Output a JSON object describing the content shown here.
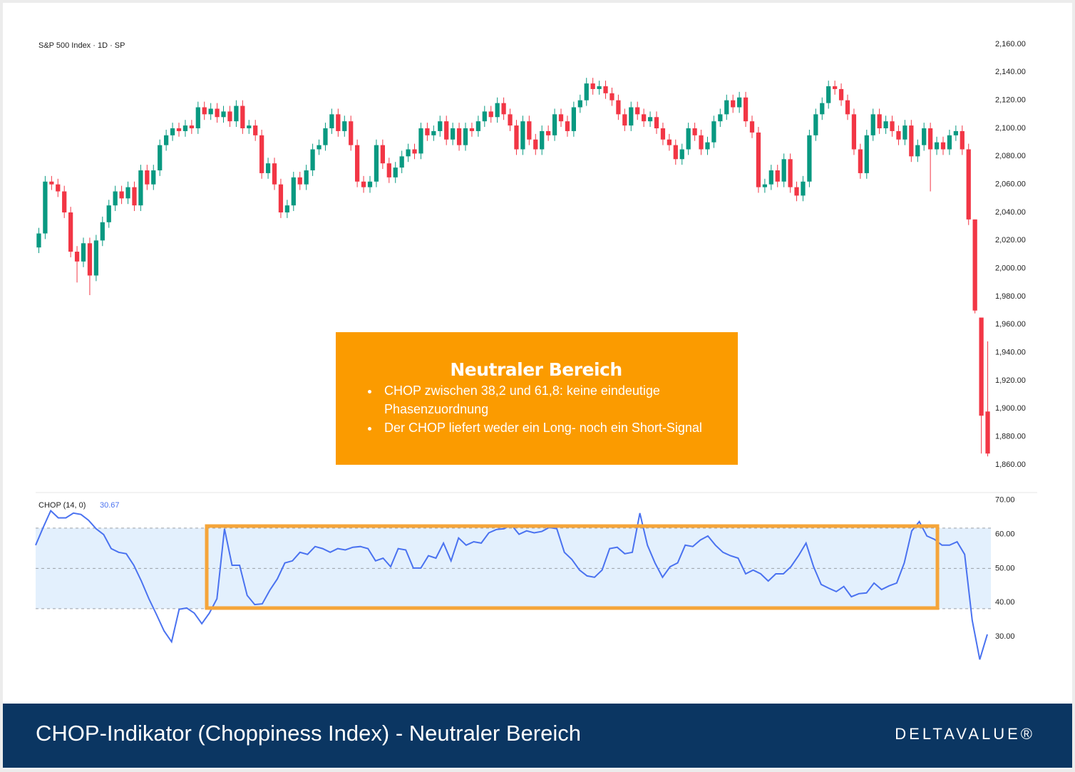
{
  "chart_data": [
    {
      "type": "candlestick",
      "title": "S&P 500 Index · 1D · SP",
      "up_color": "#089981",
      "down_color": "#f23645",
      "ylim": [
        1860,
        2160
      ],
      "yticks": [
        {
          "value": 2160,
          "label": "2,160.00"
        },
        {
          "value": 2140,
          "label": "2,140.00"
        },
        {
          "value": 2120,
          "label": "2,120.00"
        },
        {
          "value": 2100,
          "label": "2,100.00"
        },
        {
          "value": 2080,
          "label": "2,080.00"
        },
        {
          "value": 2060,
          "label": "2,060.00"
        },
        {
          "value": 2040,
          "label": "2,040.00"
        },
        {
          "value": 2020,
          "label": "2,020.00"
        },
        {
          "value": 2000,
          "label": "2,000.00"
        },
        {
          "value": 1980,
          "label": "1,980.00"
        },
        {
          "value": 1960,
          "label": "1,960.00"
        },
        {
          "value": 1940,
          "label": "1,940.00"
        },
        {
          "value": 1920,
          "label": "1,920.00"
        },
        {
          "value": 1900,
          "label": "1,900.00"
        },
        {
          "value": 1880,
          "label": "1,880.00"
        },
        {
          "value": 1860,
          "label": "1,860.00"
        }
      ],
      "open": [
        2015,
        2025,
        2062,
        2060,
        2055,
        2040,
        2012,
        2005,
        2018,
        1995,
        2020,
        2033,
        2045,
        2055,
        2050,
        2058,
        2045,
        2070,
        2060,
        2070,
        2088,
        2095,
        2100,
        2098,
        2102,
        2100,
        2115,
        2110,
        2114,
        2108,
        2112,
        2105,
        2116,
        2100,
        2102,
        2095,
        2068,
        2075,
        2060,
        2040,
        2045,
        2065,
        2060,
        2070,
        2085,
        2088,
        2100,
        2110,
        2098,
        2105,
        2088,
        2062,
        2058,
        2062,
        2088,
        2075,
        2065,
        2072,
        2080,
        2085,
        2082,
        2100,
        2095,
        2098,
        2105,
        2092,
        2100,
        2088,
        2100,
        2098,
        2105,
        2112,
        2108,
        2118,
        2110,
        2102,
        2085,
        2105,
        2092,
        2085,
        2098,
        2095,
        2110,
        2105,
        2098,
        2115,
        2120,
        2132,
        2128,
        2130,
        2125,
        2120,
        2110,
        2102,
        2115,
        2110,
        2105,
        2108,
        2100,
        2092,
        2088,
        2078,
        2085,
        2100,
        2095,
        2085,
        2090,
        2105,
        2110,
        2120,
        2115,
        2122,
        2105,
        2097,
        2058,
        2060,
        2070,
        2062,
        2078,
        2058,
        2052,
        2062,
        2095,
        2110,
        2118,
        2130,
        2128,
        2120,
        2110,
        2085,
        2068,
        2095,
        2110,
        2100,
        2105,
        2098,
        2092,
        2102,
        2080,
        2088,
        2100,
        2085,
        2090,
        2085,
        2095,
        2098,
        2085,
        2035,
        1965,
        1898
      ],
      "high": [
        2029,
        2066,
        2066,
        2064,
        2059,
        2044,
        2016,
        2022,
        2022,
        2024,
        2037,
        2049,
        2059,
        2059,
        2062,
        2062,
        2074,
        2074,
        2074,
        2092,
        2099,
        2104,
        2104,
        2106,
        2106,
        2119,
        2119,
        2118,
        2118,
        2116,
        2116,
        2120,
        2120,
        2106,
        2106,
        2099,
        2079,
        2079,
        2064,
        2049,
        2069,
        2069,
        2074,
        2089,
        2092,
        2104,
        2114,
        2114,
        2109,
        2109,
        2092,
        2066,
        2066,
        2092,
        2092,
        2079,
        2076,
        2084,
        2089,
        2089,
        2104,
        2104,
        2102,
        2109,
        2109,
        2104,
        2104,
        2104,
        2104,
        2109,
        2116,
        2116,
        2122,
        2122,
        2114,
        2106,
        2109,
        2109,
        2096,
        2102,
        2102,
        2114,
        2114,
        2109,
        2119,
        2124,
        2136,
        2136,
        2134,
        2134,
        2129,
        2124,
        2114,
        2119,
        2119,
        2114,
        2112,
        2112,
        2104,
        2096,
        2092,
        2089,
        2104,
        2104,
        2099,
        2094,
        2109,
        2114,
        2124,
        2124,
        2126,
        2126,
        2109,
        2101,
        2064,
        2074,
        2074,
        2082,
        2082,
        2062,
        2066,
        2099,
        2114,
        2122,
        2134,
        2134,
        2132,
        2124,
        2114,
        2089,
        2099,
        2114,
        2114,
        2109,
        2109,
        2102,
        2106,
        2106,
        2092,
        2104,
        2104,
        2094,
        2094,
        2099,
        2102,
        2102,
        2089,
        2035,
        1965,
        1948
      ],
      "low": [
        2011,
        2021,
        2056,
        2051,
        2036,
        2008,
        1990,
        2001,
        1981,
        1991,
        2016,
        2029,
        2041,
        2046,
        2046,
        2041,
        2041,
        2056,
        2056,
        2066,
        2084,
        2091,
        2094,
        2094,
        2096,
        2096,
        2106,
        2106,
        2104,
        2104,
        2101,
        2101,
        2096,
        2096,
        2091,
        2064,
        2064,
        2056,
        2036,
        2036,
        2041,
        2056,
        2056,
        2066,
        2081,
        2084,
        2096,
        2094,
        2094,
        2084,
        2058,
        2054,
        2054,
        2058,
        2071,
        2061,
        2061,
        2068,
        2076,
        2078,
        2078,
        2091,
        2091,
        2094,
        2088,
        2088,
        2084,
        2084,
        2094,
        2094,
        2101,
        2104,
        2104,
        2106,
        2098,
        2081,
        2081,
        2088,
        2081,
        2081,
        2091,
        2091,
        2101,
        2094,
        2094,
        2111,
        2116,
        2124,
        2124,
        2121,
        2116,
        2106,
        2098,
        2098,
        2106,
        2101,
        2101,
        2096,
        2088,
        2084,
        2074,
        2074,
        2081,
        2091,
        2081,
        2081,
        2086,
        2101,
        2106,
        2111,
        2111,
        2101,
        2093,
        2054,
        2054,
        2056,
        2058,
        2058,
        2054,
        2048,
        2048,
        2058,
        2091,
        2106,
        2114,
        2124,
        2116,
        2106,
        2081,
        2064,
        2064,
        2091,
        2096,
        2096,
        2094,
        2088,
        2088,
        2076,
        2076,
        2084,
        2055,
        2081,
        2081,
        2081,
        2091,
        2081,
        2031,
        1968,
        1868,
        1866
      ],
      "close": [
        2025,
        2062,
        2060,
        2055,
        2040,
        2012,
        2005,
        2018,
        1995,
        2020,
        2033,
        2045,
        2055,
        2050,
        2058,
        2045,
        2070,
        2060,
        2070,
        2088,
        2095,
        2100,
        2098,
        2102,
        2100,
        2115,
        2110,
        2114,
        2108,
        2112,
        2105,
        2116,
        2100,
        2102,
        2095,
        2068,
        2075,
        2060,
        2040,
        2045,
        2065,
        2060,
        2070,
        2085,
        2088,
        2100,
        2110,
        2098,
        2105,
        2088,
        2062,
        2058,
        2062,
        2088,
        2075,
        2065,
        2072,
        2080,
        2085,
        2082,
        2100,
        2095,
        2098,
        2105,
        2092,
        2100,
        2088,
        2100,
        2098,
        2105,
        2112,
        2108,
        2118,
        2110,
        2102,
        2085,
        2105,
        2092,
        2085,
        2098,
        2095,
        2110,
        2105,
        2098,
        2115,
        2120,
        2132,
        2128,
        2130,
        2125,
        2120,
        2110,
        2102,
        2115,
        2110,
        2105,
        2108,
        2100,
        2092,
        2088,
        2078,
        2085,
        2100,
        2095,
        2085,
        2090,
        2105,
        2110,
        2120,
        2115,
        2122,
        2105,
        2097,
        2058,
        2060,
        2070,
        2062,
        2078,
        2058,
        2052,
        2062,
        2095,
        2110,
        2118,
        2130,
        2128,
        2120,
        2110,
        2085,
        2068,
        2095,
        2110,
        2100,
        2105,
        2098,
        2092,
        2102,
        2080,
        2088,
        2100,
        2085,
        2090,
        2085,
        2095,
        2098,
        2085,
        2035,
        1970,
        1895,
        1868
      ]
    },
    {
      "type": "line",
      "title": "CHOP (14, 0)",
      "color": "#4a72f0",
      "bands": [
        61.8,
        50,
        38.2
      ],
      "band_color": "#e3f0fd",
      "ylim": [
        20,
        72
      ],
      "yticks": [
        {
          "value": 70,
          "label": "70.00"
        },
        {
          "value": 60,
          "label": "60.00"
        },
        {
          "value": 50,
          "label": "50.00"
        },
        {
          "value": 40,
          "label": "40.00"
        },
        {
          "value": 30,
          "label": "30.00"
        }
      ],
      "values": [
        56.8,
        62,
        66.9,
        64.8,
        64.8,
        66.2,
        65.8,
        64.1,
        61.6,
        59.9,
        55.8,
        54.7,
        54.3,
        50.9,
        46.3,
        41.1,
        36.5,
        31.7,
        28.5,
        38,
        38.4,
        36.9,
        33.8,
        36.9,
        41.1,
        61.6,
        50.9,
        50.9,
        42.1,
        39.4,
        39.6,
        43.6,
        46.9,
        51.6,
        52.2,
        54.7,
        54.1,
        56.4,
        55.8,
        54.7,
        55.8,
        55.4,
        56.2,
        56.4,
        55.8,
        52.2,
        53,
        50.5,
        55.8,
        55.4,
        50.1,
        50.1,
        53.7,
        53,
        57.4,
        52.2,
        58.9,
        56.8,
        57.8,
        57.4,
        60.4,
        61.4,
        61.6,
        62.7,
        60,
        61,
        60.4,
        60.8,
        62,
        61.6,
        54.7,
        52.6,
        49.5,
        47.8,
        47.4,
        49.5,
        55.8,
        56.2,
        54.3,
        54.7,
        66.2,
        56.8,
        51.6,
        47.4,
        50.5,
        51.6,
        56.8,
        56.4,
        58.3,
        59.5,
        56.8,
        54.7,
        53.7,
        53,
        48.4,
        49.5,
        48.4,
        46.3,
        48.4,
        48.4,
        50.5,
        53.7,
        57.4,
        50.5,
        45.3,
        44.2,
        43.2,
        44.7,
        41.7,
        42.6,
        42.8,
        45.7,
        43.8,
        44.9,
        45.7,
        51.6,
        61,
        63.7,
        59.5,
        58.5,
        56.8,
        56.8,
        57.8,
        54.1,
        34.8,
        23.3,
        30.67
      ]
    }
  ],
  "annotation": {
    "title": "Neutraler Bereich",
    "bullets": [
      "CHOP zwischen 38,2 und 61,8: keine eindeutige Phasenzuordnung",
      "Der CHOP liefert weder ein Long- noch ein Short-Signal"
    ]
  },
  "footer": {
    "title": "CHOP-Indikator (Choppiness Index) - Neutraler Bereich",
    "brand": "DELTAVALUE®"
  }
}
